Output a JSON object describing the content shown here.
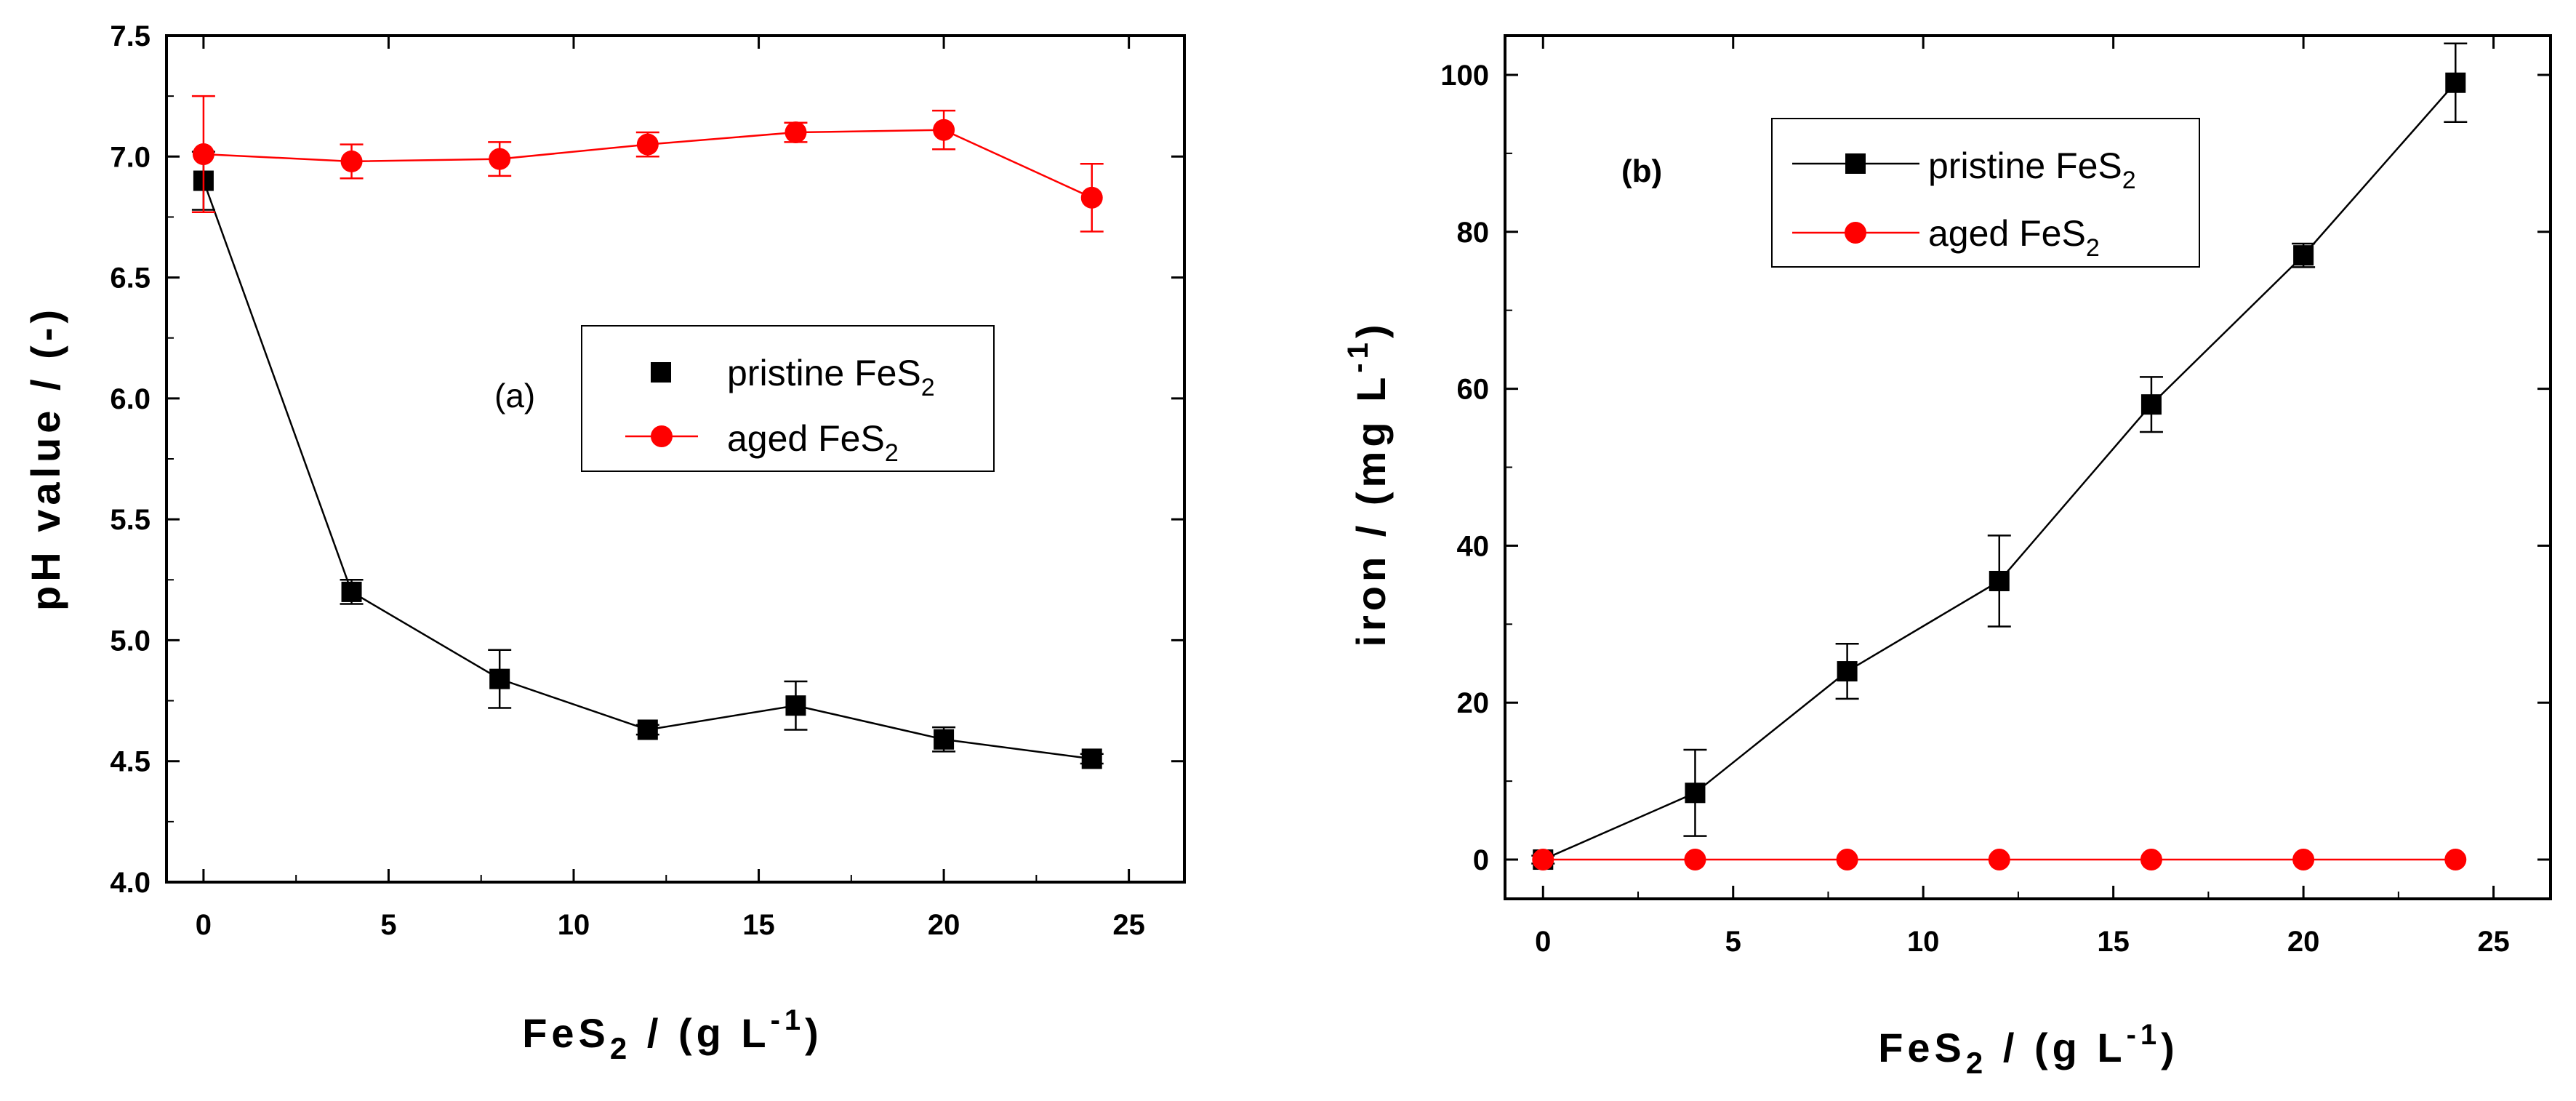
{
  "chart_data": [
    {
      "type": "line",
      "panel_label": "(a)",
      "xlabel": "FeS2 / (g L-1)",
      "xlabel_parts": {
        "main": "FeS",
        "sub": "2",
        "mid": " / (g L",
        "sup": "-1",
        "end": ")"
      },
      "ylabel": "pH value / (-)",
      "xlim": [
        -1,
        26.5
      ],
      "ylim": [
        4.0,
        7.5
      ],
      "xticks": [
        0,
        5,
        10,
        15,
        20,
        25
      ],
      "yticks": [
        4.0,
        4.5,
        5.0,
        5.5,
        6.0,
        6.5,
        7.0,
        7.5
      ],
      "ytick_labels": [
        "4.0",
        "4.5",
        "5.0",
        "5.5",
        "6.0",
        "6.5",
        "7.0",
        "7.5"
      ],
      "legend_position": "center-right",
      "series": [
        {
          "name": "pristine FeS2",
          "legend_main": "pristine FeS",
          "legend_sub": "2",
          "color": "#000000",
          "marker": "square",
          "x": [
            0,
            4,
            8,
            12,
            16,
            20,
            24
          ],
          "y": [
            6.9,
            5.2,
            4.84,
            4.63,
            4.73,
            4.59,
            4.51
          ],
          "err": [
            0.12,
            0.05,
            0.12,
            0.02,
            0.1,
            0.05,
            0.02
          ]
        },
        {
          "name": "aged FeS2",
          "legend_main": "aged FeS",
          "legend_sub": "2",
          "color": "#ff0000",
          "marker": "circle",
          "x": [
            0,
            4,
            8,
            12,
            16,
            20,
            24
          ],
          "y": [
            7.01,
            6.98,
            6.99,
            7.05,
            7.1,
            7.11,
            6.83
          ],
          "err": [
            0.24,
            0.07,
            0.07,
            0.05,
            0.04,
            0.08,
            0.14
          ]
        }
      ]
    },
    {
      "type": "line",
      "panel_label": "(b)",
      "xlabel": "FeS2 / (g L-1)",
      "xlabel_parts": {
        "main": "FeS",
        "sub": "2",
        "mid": " / (g L",
        "sup": "-1",
        "end": ")"
      },
      "ylabel": "iron / (mg L-1)",
      "ylabel_parts": {
        "main": "iron / (mg L",
        "sup": "-1",
        "end": ")"
      },
      "xlim": [
        -1,
        26.5
      ],
      "ylim": [
        -5,
        105
      ],
      "xticks": [
        0,
        5,
        10,
        15,
        20,
        25
      ],
      "yticks": [
        0,
        20,
        40,
        60,
        80,
        100
      ],
      "ytick_labels": [
        "0",
        "20",
        "40",
        "60",
        "80",
        "100"
      ],
      "legend_position": "top-left",
      "series": [
        {
          "name": "pristine FeS2",
          "legend_main": "pristine FeS",
          "legend_sub": "2",
          "color": "#000000",
          "marker": "square",
          "x": [
            0,
            4,
            8,
            12,
            16,
            20,
            24
          ],
          "y": [
            0,
            8.5,
            24,
            35.5,
            58,
            77,
            99
          ],
          "err": [
            0.5,
            5.5,
            3.5,
            5.8,
            3.5,
            1.5,
            5
          ]
        },
        {
          "name": "aged FeS2",
          "legend_main": "aged FeS",
          "legend_sub": "2",
          "color": "#ff0000",
          "marker": "circle",
          "x": [
            0,
            4,
            8,
            12,
            16,
            20,
            24
          ],
          "y": [
            0,
            0,
            0,
            0,
            0,
            0,
            0
          ],
          "err": [
            0,
            0,
            0,
            0,
            0,
            0,
            0
          ]
        }
      ]
    }
  ]
}
